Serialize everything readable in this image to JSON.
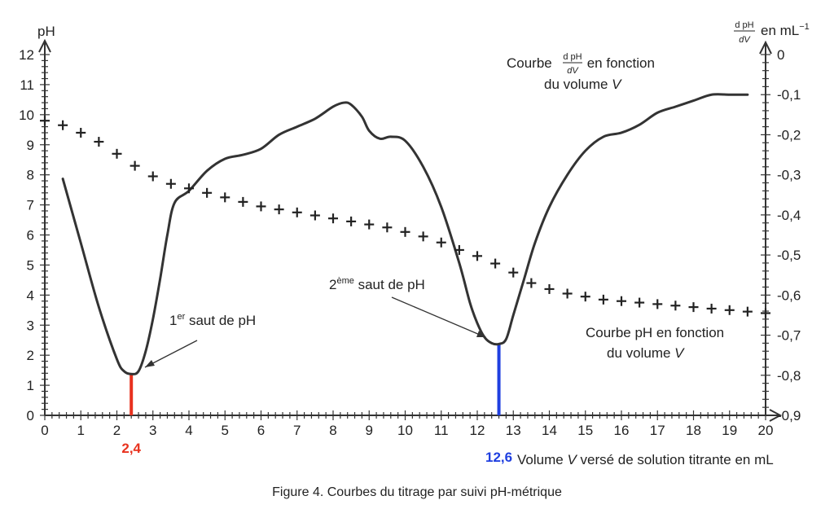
{
  "chart_data": {
    "type": "line",
    "xlabel_prefix": "Volume ",
    "xlabel_var": "V",
    "xlabel_suffix": " versé de solution titrante en mL",
    "ylabel_left": "pH",
    "ylabel_right_num": "d pH",
    "ylabel_right_den": "dV",
    "ylabel_right_unit": "en mL",
    "ylabel_right_unit_exp": "−1",
    "xlim": [
      0,
      20
    ],
    "ylim_left": [
      0,
      12
    ],
    "ylim_right": [
      -0.9,
      0
    ],
    "x_ticks": [
      "0",
      "1",
      "2",
      "3",
      "4",
      "5",
      "6",
      "7",
      "8",
      "9",
      "10",
      "11",
      "12",
      "13",
      "14",
      "15",
      "16",
      "17",
      "18",
      "19",
      "20"
    ],
    "y_left_ticks": [
      "0",
      "1",
      "2",
      "3",
      "4",
      "5",
      "6",
      "7",
      "8",
      "9",
      "10",
      "11",
      "12"
    ],
    "y_right_ticks": [
      "-0,9",
      "-0,8",
      "-0,7",
      "-0,6",
      "-0,5",
      "-0,4",
      "-0,3",
      "-0,2",
      "-0,1",
      "0"
    ],
    "series": [
      {
        "name": "Courbe pH en fonction du volume V",
        "axis": "left",
        "style": "cross",
        "x": [
          0,
          0.5,
          1,
          1.5,
          2,
          2.5,
          3,
          3.5,
          4,
          4.5,
          5,
          5.5,
          6,
          6.5,
          7,
          7.5,
          8,
          8.5,
          9,
          9.5,
          10,
          10.5,
          11,
          11.5,
          12,
          12.5,
          13,
          13.5,
          14,
          14.5,
          15,
          15.5,
          16,
          16.5,
          17,
          17.5,
          18,
          18.5,
          19,
          19.5,
          20
        ],
        "y": [
          9.8,
          9.65,
          9.4,
          9.1,
          8.7,
          8.3,
          7.95,
          7.7,
          7.55,
          7.4,
          7.25,
          7.1,
          6.95,
          6.85,
          6.75,
          6.65,
          6.55,
          6.45,
          6.35,
          6.25,
          6.1,
          5.95,
          5.75,
          5.5,
          5.3,
          5.05,
          4.75,
          4.4,
          4.2,
          4.05,
          3.95,
          3.85,
          3.8,
          3.75,
          3.7,
          3.65,
          3.6,
          3.55,
          3.5,
          3.45,
          3.4
        ]
      },
      {
        "name": "Courbe dpH/dV en fonction du volume V",
        "axis": "right",
        "style": "line",
        "x": [
          0.5,
          1,
          1.5,
          2,
          2.2,
          2.4,
          2.6,
          2.8,
          3,
          3.2,
          3.4,
          3.6,
          4,
          4.5,
          5,
          5.5,
          6,
          6.5,
          7,
          7.5,
          8,
          8.3,
          8.5,
          8.8,
          9,
          9.3,
          9.6,
          10,
          10.5,
          11,
          11.5,
          11.8,
          12,
          12.2,
          12.4,
          12.6,
          12.8,
          13,
          13.3,
          13.6,
          14,
          14.5,
          15,
          15.5,
          16,
          16.5,
          17,
          17.5,
          18,
          18.5,
          19,
          19.5
        ],
        "y": [
          -0.31,
          -0.47,
          -0.63,
          -0.76,
          -0.79,
          -0.797,
          -0.79,
          -0.74,
          -0.66,
          -0.56,
          -0.45,
          -0.37,
          -0.34,
          -0.29,
          -0.26,
          -0.25,
          -0.235,
          -0.2,
          -0.18,
          -0.16,
          -0.13,
          -0.12,
          -0.125,
          -0.155,
          -0.19,
          -0.21,
          -0.205,
          -0.215,
          -0.28,
          -0.38,
          -0.52,
          -0.62,
          -0.67,
          -0.705,
          -0.72,
          -0.722,
          -0.71,
          -0.65,
          -0.56,
          -0.47,
          -0.38,
          -0.3,
          -0.24,
          -0.205,
          -0.195,
          -0.175,
          -0.145,
          -0.13,
          -0.115,
          -0.1,
          -0.1,
          -0.1
        ]
      }
    ],
    "annotations": {
      "curve_pH_line1": "Courbe pH en fonction",
      "curve_pH_line2_prefix": "du volume ",
      "curve_pH_line2_var": "V",
      "curve_deriv_prefix": "Courbe ",
      "curve_deriv_num": "d pH",
      "curve_deriv_den": "dV",
      "curve_deriv_suffix": " en fonction",
      "curve_deriv_line2_prefix": "du volume ",
      "curve_deriv_line2_var": "V",
      "jump1_num": "1",
      "jump1_sup": "er",
      "jump1_text": " saut de pH",
      "jump2_num": "2",
      "jump2_sup": "ème",
      "jump2_text": " saut de pH",
      "equiv1": {
        "x": 2.4,
        "label": "2,4",
        "color": "#e8321e"
      },
      "equiv2": {
        "x": 12.6,
        "label": "12,6",
        "color": "#1f3fe0"
      }
    },
    "grid": false,
    "legend": "none"
  },
  "caption": "Figure 4. Courbes du titrage par suivi pH-métrique"
}
